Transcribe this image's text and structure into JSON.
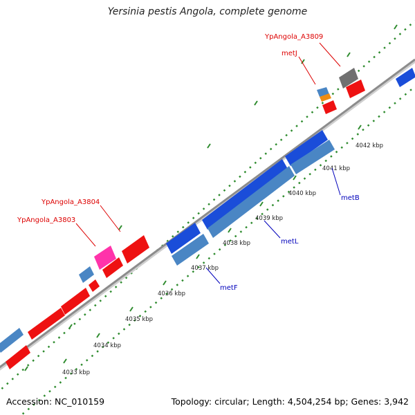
{
  "title": "Yersinia pestis Angola, complete genome",
  "footer": {
    "accession": "Accession: NC_010159",
    "topology": "Topology: circular; Length: 4,504,254 bp; Genes: 3,942"
  },
  "colors": {
    "backbone": "#8c8c8c",
    "tick": "#2e8b2e",
    "gene_forward": "#ee1111",
    "gene_reverse": "#1a4dd9",
    "gene_other": "#4a86c4",
    "pseudo": "#ff33aa",
    "rna": "#707070",
    "misc": "#f08c12",
    "label_red": "#dd0000",
    "label_blue": "#0000bb"
  },
  "scale": {
    "unit": "kbp",
    "ticks": [
      {
        "value": 4033,
        "label": "4033 kbp"
      },
      {
        "value": 4034,
        "label": "4034 kbp"
      },
      {
        "value": 4035,
        "label": "4035 kbp"
      },
      {
        "value": 4036,
        "label": "4036 kbp"
      },
      {
        "value": 4037,
        "label": "4037 kbp"
      },
      {
        "value": 4038,
        "label": "4038 kbp"
      },
      {
        "value": 4039,
        "label": "4039 kbp"
      },
      {
        "value": 4040,
        "label": "4040 kbp"
      },
      {
        "value": 4041,
        "label": "4041 kbp"
      },
      {
        "value": 4042,
        "label": "4042 kbp"
      }
    ]
  },
  "annotations": {
    "red": [
      "YpAngola_A3809",
      "metJ",
      "YpAngola_A3804",
      "YpAngola_A3803"
    ],
    "blue": [
      "metB",
      "metL",
      "metF"
    ]
  }
}
